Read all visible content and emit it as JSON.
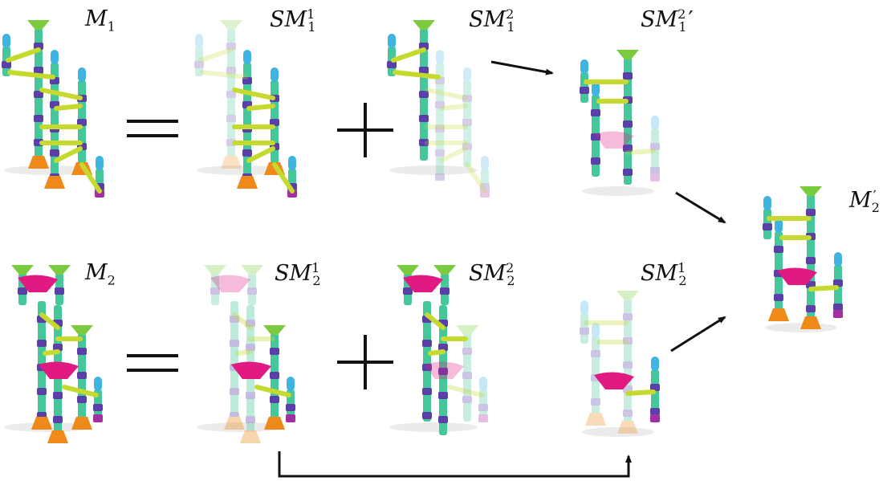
{
  "colors": {
    "tube": "#45c79a",
    "connector": "#5a3fa8",
    "cap": "#3fb4e0",
    "funnel": "#7acb3f",
    "rail": "#c6d92e",
    "base": "#ef8a1a",
    "pink": "#e11a83",
    "magenta": "#a42ea3",
    "arrow": "#111111"
  },
  "labels": {
    "m1": {
      "base": "M",
      "sub": "1",
      "sup": "",
      "prime": ""
    },
    "sm1_1": {
      "base": "SM",
      "sub": "1",
      "sup": "1",
      "prime": ""
    },
    "sm1_2": {
      "base": "SM",
      "sub": "1",
      "sup": "2",
      "prime": ""
    },
    "sm1_2p": {
      "base": "SM",
      "sub": "1",
      "sup": "2",
      "prime": "′"
    },
    "m2p": {
      "base": "M",
      "sub": "2",
      "sup": "",
      "prime": "′"
    },
    "m2": {
      "base": "M",
      "sub": "2",
      "sup": "",
      "prime": ""
    },
    "sm2_1": {
      "base": "SM",
      "sub": "2",
      "sup": "1",
      "prime": ""
    },
    "sm2_2": {
      "base": "SM",
      "sub": "2",
      "sup": "2",
      "prime": ""
    },
    "sm2_1b": {
      "base": "SM",
      "sub": "2",
      "sup": "1",
      "prime": ""
    }
  },
  "operators": {
    "equals": "=",
    "plus": "+"
  }
}
